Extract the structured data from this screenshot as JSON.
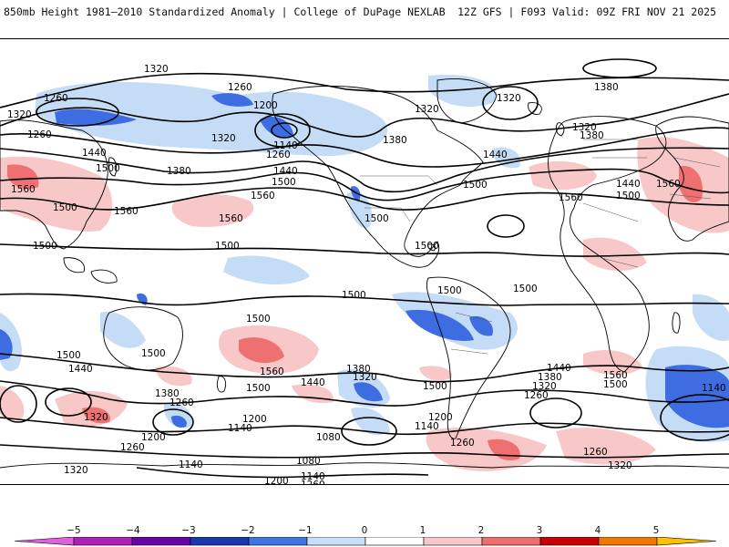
{
  "header": {
    "left_title": "850mb Height 1981–2010 Standardized Anomaly | College of DuPage NEXLAB",
    "right_title": "12Z GFS | F093 Valid: 09Z FRI NOV 21 2025"
  },
  "map": {
    "projection": "global cylindrical",
    "contour_variable": "850mb geopotential height (m)",
    "shading_variable": "standardized anomaly (sigma)",
    "contour_labels": [
      "1320",
      "1260",
      "1200",
      "1140",
      "1380",
      "1440",
      "1500",
      "1560",
      "1080"
    ],
    "colors": {
      "neg5": "#d24cd2",
      "neg4": "#9012b8",
      "neg3": "#1a3fb4",
      "neg2": "#3d6de0",
      "neg1": "#c5dcf6",
      "pos1": "#f8c8c8",
      "pos2": "#ee7070",
      "pos3": "#cc1c1c",
      "pos4": "#f08a00",
      "pos5": "#ffb400",
      "contour": "#000000",
      "coast": "#000000"
    }
  },
  "colorbar": {
    "ticks": [
      "−5",
      "−4",
      "−3",
      "−2",
      "−1",
      "0",
      "1",
      "2",
      "3",
      "4",
      "5"
    ],
    "bins": [
      {
        "range": "-5 to -4",
        "color": "#b020b8"
      },
      {
        "range": "-4 to -3",
        "color": "#6a00a8"
      },
      {
        "range": "-3 to -2",
        "color": "#1838b0"
      },
      {
        "range": "-2 to -1",
        "color": "#3f74e2"
      },
      {
        "range": "-1 to 0",
        "color": "#c9def8"
      },
      {
        "range": "0 to 1",
        "color": "#ffffff"
      },
      {
        "range": "1 to 2",
        "color": "#f8c8c8"
      },
      {
        "range": "2 to 3",
        "color": "#ee6e6e"
      },
      {
        "range": "3 to 4",
        "color": "#c80000"
      },
      {
        "range": "4 to 5",
        "color": "#f07800"
      }
    ]
  },
  "labels": {
    "h1320a": "1320",
    "h1260a": "1260",
    "h1200a": "1200",
    "h1140a": "1140",
    "h1380a": "1380",
    "h1440a": "1440",
    "h1500a": "1500",
    "h1560a": "1560",
    "h1080a": "1080"
  }
}
